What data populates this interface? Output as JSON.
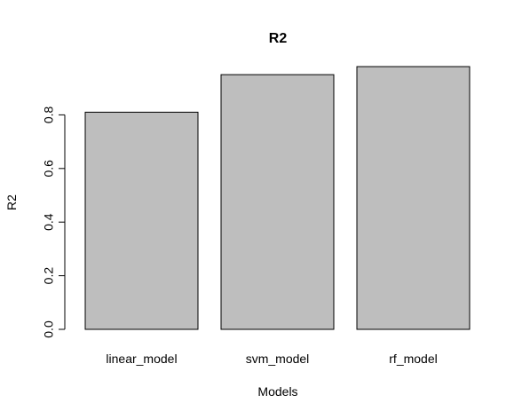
{
  "chart_data": {
    "type": "bar",
    "title": "R2",
    "xlabel": "Models",
    "ylabel": "R2",
    "categories": [
      "linear_model",
      "svm_model",
      "rf_model"
    ],
    "values": [
      0.81,
      0.95,
      0.98
    ],
    "ylim": [
      0,
      1
    ],
    "yticks": [
      0.0,
      0.2,
      0.4,
      0.6,
      0.8
    ],
    "ytick_labels": [
      "0.0",
      "0.2",
      "0.4",
      "0.6",
      "0.8"
    ],
    "grid": false,
    "legend": "none",
    "colors": {
      "bar_fill": "#bebebe",
      "bar_stroke": "#000000",
      "axis": "#000000",
      "background": "#ffffff"
    }
  }
}
